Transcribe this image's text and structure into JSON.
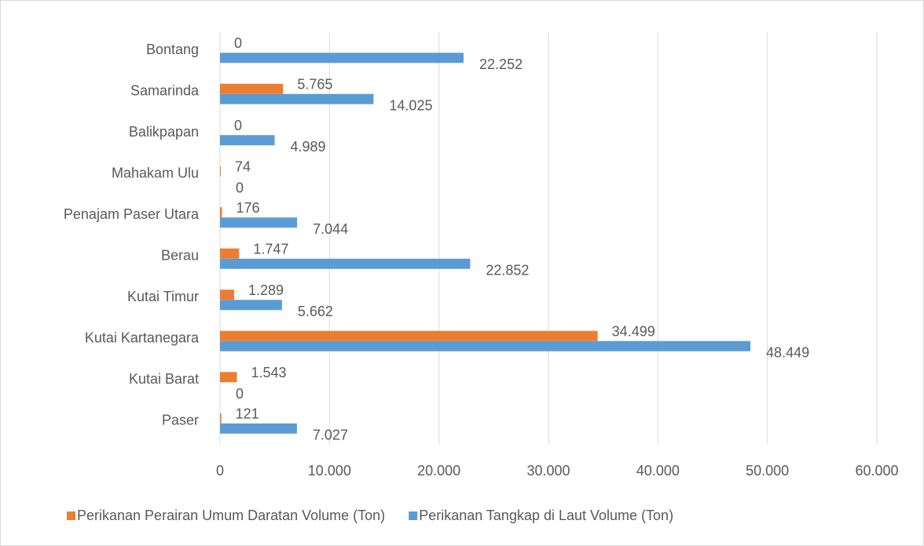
{
  "chart_data": {
    "type": "barh",
    "categories": [
      "Paser",
      "Kutai Barat",
      "Kutai Kartanegara",
      "Kutai Timur",
      "Berau",
      "Penajam Paser Utara",
      "Mahakam Ulu",
      "Balikpapan",
      "Samarinda",
      "Bontang"
    ],
    "series": [
      {
        "name": "Perikanan Perairan Umum Daratan Volume (Ton)",
        "color": "#ed7d31",
        "values": [
          121,
          1543,
          34499,
          1289,
          1747,
          176,
          74,
          0,
          5765,
          0
        ],
        "value_labels": [
          "121",
          "1.543",
          "34.499",
          "1.289",
          "1.747",
          "176",
          "74",
          "0",
          "5.765",
          "0"
        ]
      },
      {
        "name": "Perikanan Tangkap di Laut Volume (Ton)",
        "color": "#5b9bd5",
        "values": [
          7027,
          0,
          48449,
          5662,
          22852,
          7044,
          0,
          4989,
          14025,
          22252
        ],
        "value_labels": [
          "7.027",
          "0",
          "48.449",
          "5.662",
          "22.852",
          "7.044",
          "0",
          "4.989",
          "14.025",
          "22.252"
        ]
      }
    ],
    "xlim": [
      0,
      60000
    ],
    "xticks": [
      0,
      {
        "value": 10000,
        "label": "10.000"
      },
      {
        "value": 20000,
        "label": "20.000"
      },
      {
        "value": 30000,
        "label": "30.000"
      },
      {
        "value": 40000,
        "label": "40.000"
      },
      {
        "value": 50000,
        "label": "50.000"
      },
      {
        "value": 60000,
        "label": "60.000"
      }
    ],
    "grid": true,
    "legend": "bottom"
  }
}
